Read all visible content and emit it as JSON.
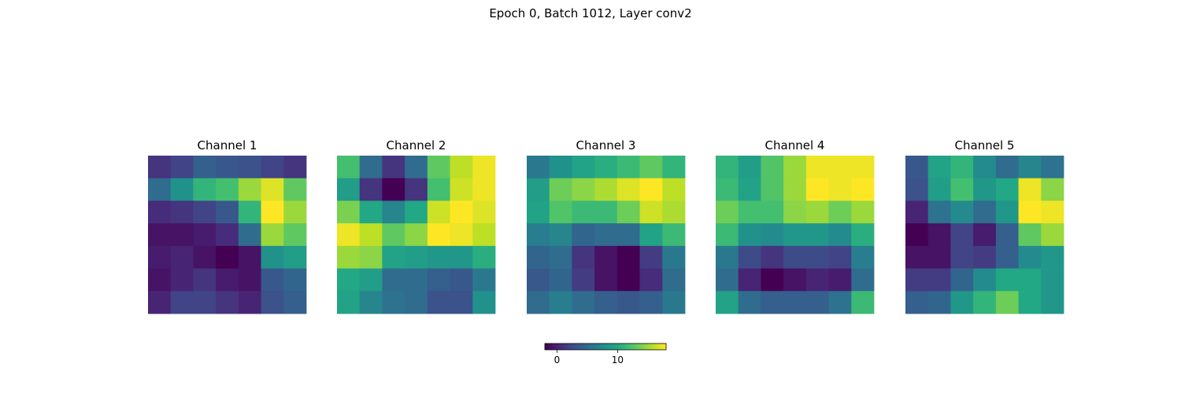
{
  "figure": {
    "suptitle": "Epoch 0, Batch 1012, Layer conv2"
  },
  "chart_data": {
    "type": "heatmap",
    "colormap": "viridis",
    "grid": false,
    "axes_visible": false,
    "vmin": -2,
    "vmax": 18,
    "colorbar": {
      "placement": "bottom-center",
      "orientation": "horizontal",
      "ticks": [
        0,
        10
      ],
      "tick_labels": [
        "0",
        "10"
      ]
    },
    "panels": [
      {
        "title": "Channel 1",
        "values": [
          [
            1.0,
            2.0,
            4.0,
            3.5,
            3.0,
            2.0,
            1.0
          ],
          [
            5.0,
            8.0,
            11.0,
            12.0,
            15.0,
            17.0,
            13.0
          ],
          [
            0.5,
            1.0,
            2.0,
            3.5,
            11.0,
            18.0,
            15.0
          ],
          [
            -1.0,
            -1.0,
            -0.5,
            0.5,
            5.0,
            15.0,
            13.0
          ],
          [
            -0.5,
            0.0,
            -1.0,
            -2.0,
            -1.0,
            8.0,
            9.0
          ],
          [
            -1.0,
            0.0,
            1.0,
            -0.5,
            -1.0,
            3.5,
            4.5
          ],
          [
            0.0,
            2.0,
            2.0,
            1.0,
            0.0,
            3.0,
            4.0
          ]
        ]
      },
      {
        "title": "Channel 2",
        "values": [
          [
            12.0,
            5.0,
            1.0,
            5.0,
            13.0,
            16.0,
            17.5
          ],
          [
            9.0,
            1.0,
            -2.0,
            1.0,
            12.0,
            16.5,
            17.5
          ],
          [
            14.0,
            10.0,
            7.0,
            10.0,
            16.5,
            18.0,
            17.0
          ],
          [
            17.5,
            16.0,
            13.0,
            14.5,
            18.0,
            17.5,
            16.0
          ],
          [
            15.0,
            14.5,
            9.5,
            9.0,
            8.5,
            8.5,
            10.5
          ],
          [
            10.0,
            9.0,
            5.0,
            5.0,
            4.0,
            3.5,
            6.0
          ],
          [
            9.5,
            7.0,
            5.5,
            5.0,
            3.0,
            3.0,
            8.0
          ]
        ]
      },
      {
        "title": "Channel 3",
        "values": [
          [
            6.0,
            8.0,
            9.5,
            10.5,
            11.5,
            13.0,
            11.0
          ],
          [
            9.0,
            13.5,
            14.5,
            15.5,
            17.0,
            18.0,
            16.0
          ],
          [
            9.5,
            12.5,
            11.5,
            11.5,
            13.5,
            16.5,
            15.5
          ],
          [
            6.5,
            7.0,
            4.5,
            5.0,
            5.0,
            9.5,
            11.5
          ],
          [
            4.5,
            5.0,
            1.0,
            -1.0,
            -2.0,
            1.5,
            6.0
          ],
          [
            3.5,
            4.5,
            1.5,
            -1.0,
            -2.0,
            0.5,
            5.0
          ],
          [
            5.0,
            6.5,
            5.0,
            4.0,
            3.5,
            4.0,
            6.0
          ]
        ]
      },
      {
        "title": "Channel 4",
        "values": [
          [
            11.0,
            9.0,
            12.5,
            15.0,
            17.5,
            17.5,
            17.5
          ],
          [
            11.5,
            9.5,
            12.5,
            15.0,
            18.0,
            17.5,
            18.0
          ],
          [
            13.5,
            12.0,
            12.0,
            14.5,
            15.0,
            13.5,
            15.0
          ],
          [
            11.5,
            8.0,
            7.5,
            8.5,
            8.5,
            7.5,
            10.5
          ],
          [
            6.0,
            2.5,
            1.0,
            2.5,
            2.5,
            2.0,
            6.5
          ],
          [
            5.0,
            0.0,
            -2.0,
            -1.0,
            0.0,
            -0.5,
            5.0
          ],
          [
            9.5,
            5.0,
            4.0,
            4.0,
            4.0,
            5.5,
            11.5
          ]
        ]
      },
      {
        "title": "Channel 5",
        "values": [
          [
            3.5,
            9.5,
            11.0,
            7.5,
            5.0,
            7.0,
            5.5
          ],
          [
            3.0,
            9.0,
            12.0,
            8.5,
            10.0,
            17.5,
            14.5
          ],
          [
            0.0,
            5.5,
            7.5,
            5.0,
            8.5,
            18.0,
            17.5
          ],
          [
            -2.0,
            -1.0,
            2.0,
            -0.5,
            4.0,
            13.0,
            15.0
          ],
          [
            -1.0,
            -1.0,
            2.0,
            1.5,
            4.0,
            7.5,
            8.5
          ],
          [
            1.5,
            1.5,
            4.5,
            7.5,
            10.0,
            10.0,
            8.5
          ],
          [
            4.0,
            4.5,
            8.5,
            11.0,
            13.5,
            10.0,
            8.5
          ]
        ]
      }
    ]
  }
}
